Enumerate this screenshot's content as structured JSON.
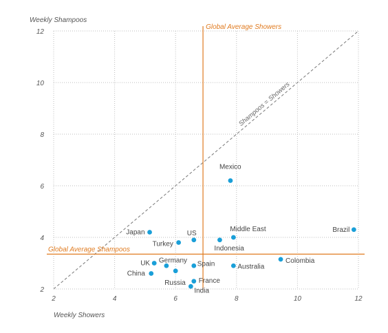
{
  "chart_data": {
    "type": "scatter",
    "xlabel": "Weekly Showers",
    "ylabel": "Weekly Shampoos",
    "xlim": [
      2,
      12
    ],
    "ylim": [
      2,
      12
    ],
    "x_ticks": [
      "2",
      "4",
      "6",
      "8",
      "10",
      "12"
    ],
    "y_ticks": [
      "2",
      "4",
      "6",
      "8",
      "10",
      "12"
    ],
    "grid": true,
    "point_color": "#1a9fd8",
    "reference_color": "#e07b20",
    "reference_lines": {
      "x": {
        "value": 6.9,
        "label": "Global Average Showers"
      },
      "y": {
        "value": 3.35,
        "label": "Global Average Shampoos"
      },
      "diagonal": {
        "label": "Shampoos = Showers"
      }
    },
    "points": [
      {
        "label": "Brazil",
        "x": 11.85,
        "y": 4.3
      },
      {
        "label": "Mexico",
        "x": 7.8,
        "y": 6.2
      },
      {
        "label": "Japan",
        "x": 5.15,
        "y": 4.2
      },
      {
        "label": "US",
        "x": 6.6,
        "y": 3.9
      },
      {
        "label": "Turkey",
        "x": 6.1,
        "y": 3.8
      },
      {
        "label": "Middle East",
        "x": 7.9,
        "y": 4.0
      },
      {
        "label": "Indonesia",
        "x": 7.45,
        "y": 3.9
      },
      {
        "label": "Colombia",
        "x": 9.45,
        "y": 3.15
      },
      {
        "label": "UK",
        "x": 5.3,
        "y": 3.0
      },
      {
        "label": "Germany",
        "x": 5.7,
        "y": 2.9
      },
      {
        "label": "Spain",
        "x": 6.6,
        "y": 2.9
      },
      {
        "label": "Australia",
        "x": 7.9,
        "y": 2.9
      },
      {
        "label": "China",
        "x": 5.2,
        "y": 2.6
      },
      {
        "label": "Russia",
        "x": 6.0,
        "y": 2.7
      },
      {
        "label": "France",
        "x": 6.6,
        "y": 2.3
      },
      {
        "label": "India",
        "x": 6.5,
        "y": 2.1
      }
    ]
  }
}
